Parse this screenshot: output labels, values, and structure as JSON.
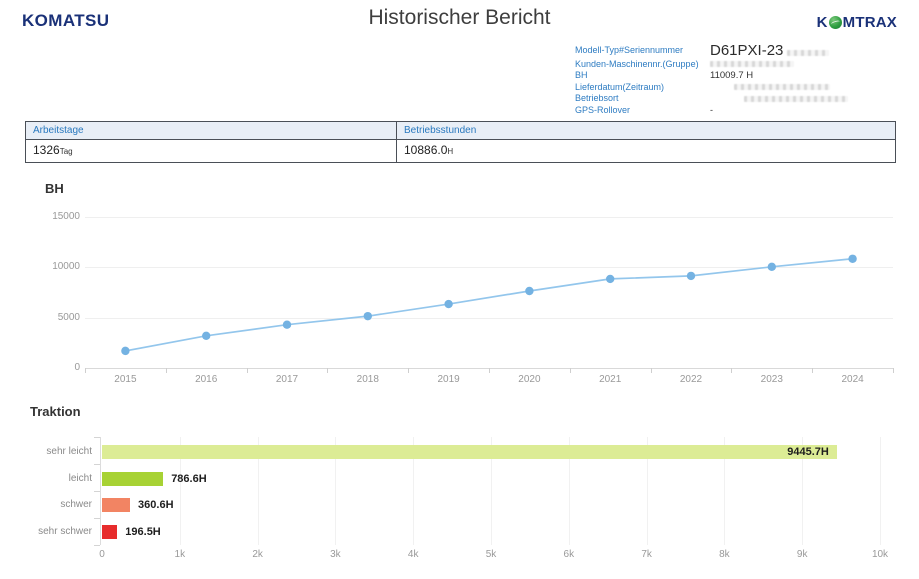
{
  "header": {
    "komatsu_logo": "KOMATSU",
    "title": "Historischer Bericht",
    "komtrax_k": "K",
    "komtrax_rest": "MTRAX"
  },
  "info": {
    "model_label": "Modell-Typ#Seriennummer",
    "model_value": "D61PXI-23",
    "customer_label": "Kunden-Maschinennr.(Gruppe)",
    "bh_label": "BH",
    "bh_value": "11009.7 H",
    "delivery_label": "Lieferdatum(Zeitraum)",
    "location_label": "Betriebsort",
    "gps_label": "GPS-Rollover",
    "gps_value": "-"
  },
  "summary_table": {
    "columns": [
      "Arbeitstage",
      "Betriebsstunden"
    ],
    "arbeitstage_value": "1326",
    "arbeitstage_unit": "Tag",
    "betriebsstunden_value": "10886.0",
    "betriebsstunden_unit": "H"
  },
  "chart_data": [
    {
      "type": "line",
      "title": "BH",
      "x": [
        "2015",
        "2016",
        "2017",
        "2018",
        "2019",
        "2020",
        "2021",
        "2022",
        "2023",
        "2024"
      ],
      "values": [
        1700,
        3200,
        4300,
        5150,
        6350,
        7650,
        8850,
        9150,
        10050,
        10850
      ],
      "ylim": [
        0,
        15000
      ],
      "yticks": [
        "0",
        "5000",
        "10000",
        "15000"
      ],
      "grid": true,
      "legend": "none",
      "line_color": "#93c6ec",
      "point_color": "#74b2e2"
    },
    {
      "type": "bar",
      "orientation": "horizontal",
      "title": "Traktion",
      "categories": [
        "sehr leicht",
        "leicht",
        "schwer",
        "sehr schwer"
      ],
      "values": [
        9445.7,
        786.6,
        360.6,
        196.5
      ],
      "value_labels": [
        "9445.7H",
        "786.6H",
        "360.6H",
        "196.5H"
      ],
      "bar_colors": [
        "#dcec95",
        "#a7d234",
        "#f28463",
        "#e72c2c"
      ],
      "xlim": [
        0,
        10000
      ],
      "xticks": [
        "0",
        "1k",
        "2k",
        "3k",
        "4k",
        "5k",
        "6k",
        "7k",
        "8k",
        "9k",
        "10k"
      ],
      "grid": true,
      "legend": "none"
    }
  ]
}
